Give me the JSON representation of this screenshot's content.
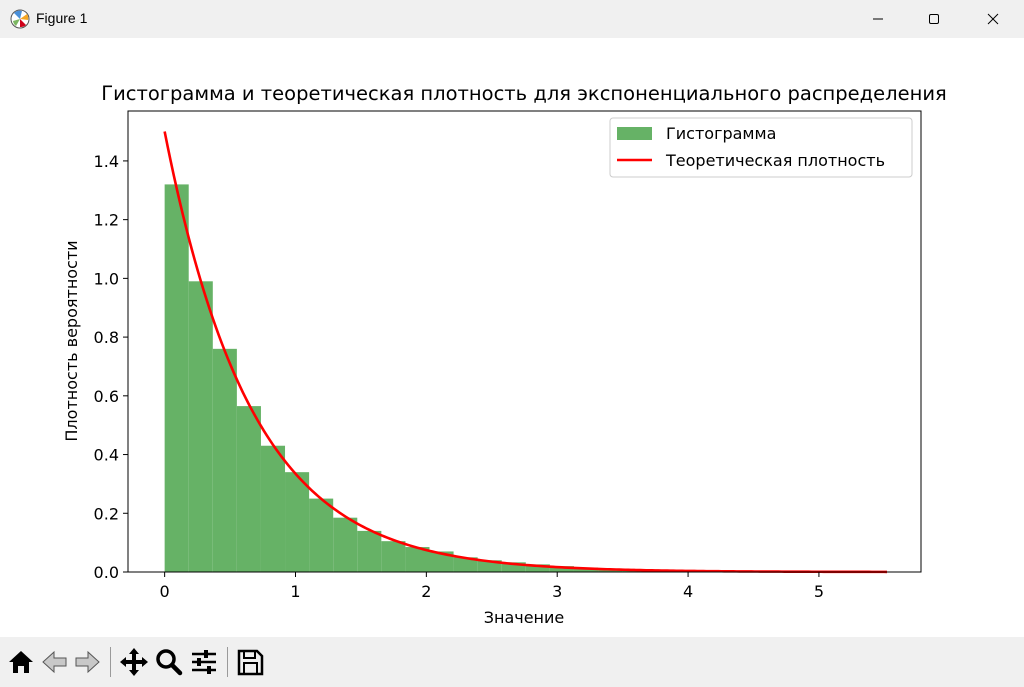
{
  "window": {
    "title": "Figure 1",
    "icons": [
      "matplotlib-icon",
      "minimize-icon",
      "maximize-icon",
      "close-icon"
    ]
  },
  "toolbar": {
    "icons": [
      "home-icon",
      "back-icon",
      "forward-icon",
      "pan-icon",
      "zoom-icon",
      "configure-subplots-icon",
      "save-icon"
    ]
  },
  "colors": {
    "histogram": "#66b266",
    "density_line": "#ff0000",
    "titlebar": "#f0f0f0",
    "toolbar": "#f0f0f0"
  },
  "chart_data": {
    "type": "bar",
    "title": "Гистограмма и теоретическая плотность для экспоненциального распределения",
    "xlabel": "Значение",
    "ylabel": "Плотность вероятности",
    "xlim": [
      -0.28,
      5.78
    ],
    "ylim": [
      0,
      1.57
    ],
    "xticks": [
      0,
      1,
      2,
      3,
      4,
      5
    ],
    "yticks": [
      0.0,
      0.2,
      0.4,
      0.6,
      0.8,
      1.0,
      1.2,
      1.4
    ],
    "xtick_labels": [
      "0",
      "1",
      "2",
      "3",
      "4",
      "5"
    ],
    "ytick_labels": [
      "0.0",
      "0.2",
      "0.4",
      "0.6",
      "0.8",
      "1.0",
      "1.2",
      "1.4"
    ],
    "grid": false,
    "legend": {
      "position": "top-right",
      "entries": [
        "Гистограмма",
        "Теоретическая плотность"
      ]
    },
    "histogram": {
      "name": "Гистограмма",
      "bin_width": 0.184,
      "bin_edges_start": 0,
      "values": [
        1.32,
        0.99,
        0.76,
        0.565,
        0.43,
        0.34,
        0.25,
        0.185,
        0.14,
        0.105,
        0.085,
        0.07,
        0.05,
        0.04,
        0.033,
        0.026,
        0.02,
        0.015,
        0.012,
        0.009,
        0.007,
        0.006,
        0.005,
        0.004,
        0.003,
        0.003,
        0.002,
        0.002,
        0.001,
        0.001
      ]
    },
    "density": {
      "name": "Теоретическая плотность",
      "function": "1.5*exp(-1.5x)",
      "x_range": [
        0,
        5.52
      ]
    }
  }
}
